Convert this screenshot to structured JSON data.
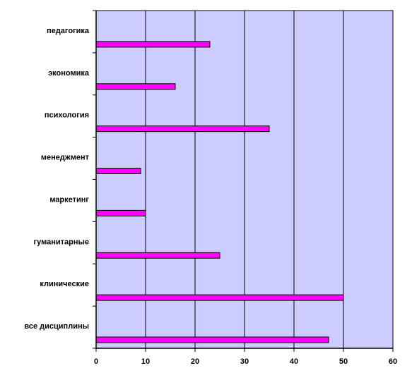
{
  "chart_data": {
    "type": "bar",
    "orientation": "horizontal",
    "categories": [
      "педагогика",
      "экономика",
      "психология",
      "менеджмент",
      "маркетинг",
      "гуманитарные",
      "клинические",
      "все дисциплины"
    ],
    "values": [
      23,
      16,
      35,
      9,
      10,
      25,
      50,
      47
    ],
    "xlim": [
      0,
      60
    ],
    "xticks": [
      "0",
      "10",
      "20",
      "30",
      "40",
      "50",
      "60"
    ],
    "title": "",
    "xlabel": "",
    "ylabel": "",
    "grid": "vertical",
    "legend": "none"
  },
  "colors": {
    "plot_background": "#CCCCFF",
    "bar_fill": "#FF00FF",
    "bar_stroke": "#000000",
    "gridline": "#000000"
  }
}
